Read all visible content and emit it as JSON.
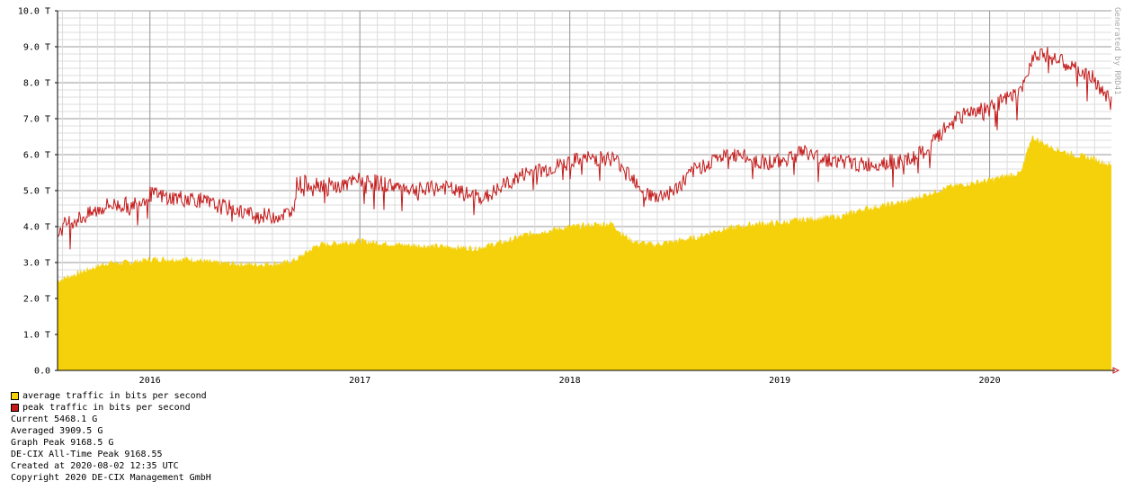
{
  "chart_data": {
    "type": "area",
    "watermark": "Generated by RRD41",
    "ylim": [
      0,
      10
    ],
    "yticks": [
      "0.0",
      "1.0 T",
      "2.0 T",
      "3.0 T",
      "4.0 T",
      "5.0 T",
      "6.0 T",
      "7.0 T",
      "8.0 T",
      "9.0 T",
      "10.0 T"
    ],
    "xlim": [
      2015.56,
      2020.58
    ],
    "xticks": [
      {
        "x": 2016.0,
        "label": "2016"
      },
      {
        "x": 2017.0,
        "label": "2017"
      },
      {
        "x": 2018.0,
        "label": "2018"
      },
      {
        "x": 2019.0,
        "label": "2019"
      },
      {
        "x": 2020.0,
        "label": "2020"
      }
    ],
    "series": [
      {
        "name": "average traffic in bits per second",
        "color": "#f5d10c",
        "x": [
          2015.56,
          2015.7,
          2015.8,
          2015.9,
          2016.0,
          2016.2,
          2016.3,
          2016.5,
          2016.65,
          2016.7,
          2016.8,
          2016.9,
          2017.0,
          2017.2,
          2017.4,
          2017.55,
          2017.7,
          2017.8,
          2017.9,
          2018.0,
          2018.1,
          2018.2,
          2018.25,
          2018.3,
          2018.4,
          2018.5,
          2018.6,
          2018.7,
          2018.8,
          2018.9,
          2019.0,
          2019.1,
          2019.2,
          2019.3,
          2019.4,
          2019.5,
          2019.6,
          2019.7,
          2019.8,
          2019.9,
          2020.0,
          2020.1,
          2020.15,
          2020.2,
          2020.3,
          2020.4,
          2020.5,
          2020.58
        ],
        "values": [
          2.5,
          2.8,
          3.0,
          3.0,
          3.1,
          3.1,
          3.0,
          2.95,
          3.0,
          3.1,
          3.5,
          3.55,
          3.6,
          3.5,
          3.45,
          3.4,
          3.6,
          3.8,
          3.9,
          4.0,
          4.05,
          4.1,
          3.8,
          3.6,
          3.5,
          3.6,
          3.7,
          3.9,
          4.0,
          4.1,
          4.1,
          4.2,
          4.25,
          4.3,
          4.5,
          4.6,
          4.7,
          4.9,
          5.1,
          5.2,
          5.3,
          5.45,
          5.5,
          6.5,
          6.2,
          6.0,
          5.9,
          5.7
        ]
      },
      {
        "name": "peak traffic in bits per second",
        "color": "#c41a1a",
        "x": [
          2015.56,
          2015.6,
          2015.7,
          2015.8,
          2015.9,
          2015.95,
          2016.0,
          2016.1,
          2016.2,
          2016.3,
          2016.4,
          2016.5,
          2016.6,
          2016.68,
          2016.7,
          2016.8,
          2016.9,
          2017.0,
          2017.1,
          2017.2,
          2017.3,
          2017.4,
          2017.5,
          2017.6,
          2017.7,
          2017.8,
          2017.9,
          2018.0,
          2018.1,
          2018.2,
          2018.25,
          2018.3,
          2018.35,
          2018.4,
          2018.5,
          2018.6,
          2018.7,
          2018.8,
          2018.9,
          2019.0,
          2019.1,
          2019.2,
          2019.3,
          2019.4,
          2019.5,
          2019.6,
          2019.7,
          2019.8,
          2019.9,
          2020.0,
          2020.1,
          2020.15,
          2020.2,
          2020.25,
          2020.3,
          2020.4,
          2020.5,
          2020.58
        ],
        "values": [
          3.8,
          4.1,
          4.3,
          4.6,
          4.6,
          4.7,
          4.9,
          4.8,
          4.8,
          4.6,
          4.5,
          4.3,
          4.3,
          4.4,
          5.2,
          5.2,
          5.1,
          5.3,
          5.2,
          5.1,
          5.0,
          5.1,
          4.9,
          4.8,
          5.2,
          5.5,
          5.6,
          5.8,
          5.9,
          5.9,
          5.7,
          5.4,
          5.0,
          4.8,
          5.0,
          5.6,
          5.9,
          6.0,
          5.8,
          5.8,
          6.1,
          5.9,
          5.8,
          5.7,
          5.8,
          5.8,
          6.1,
          6.8,
          7.2,
          7.3,
          7.6,
          7.7,
          8.7,
          8.9,
          8.7,
          8.4,
          8.1,
          7.4
        ]
      }
    ]
  },
  "stats": {
    "current": "Current 5468.1 G",
    "averaged": "Averaged 3909.5 G",
    "graph_peak": "Graph Peak 9168.5 G",
    "all_time_peak": "DE-CIX All-Time Peak 9168.55",
    "created": "Created at 2020-08-02 12:35 UTC",
    "copyright": "Copyright 2020 DE-CIX Management GmbH"
  }
}
